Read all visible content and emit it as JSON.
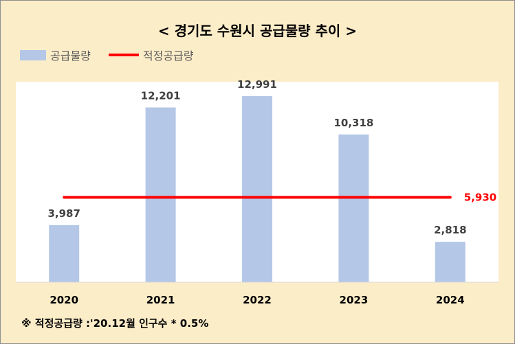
{
  "chart_data": {
    "type": "bar",
    "title": "< 경기도 수원시 공급물량 추이 >",
    "categories": [
      "2020",
      "2021",
      "2022",
      "2023",
      "2024"
    ],
    "series": [
      {
        "name": "공급물량",
        "type": "bar",
        "values": [
          3987,
          12201,
          12991,
          10318,
          2818
        ],
        "value_labels": [
          "3,987",
          "12,201",
          "12,991",
          "10,318",
          "2,818"
        ],
        "color": "#b4c7e7"
      },
      {
        "name": "적정공급량",
        "type": "line",
        "value": 5930,
        "value_label": "5,930",
        "color": "#ff0000"
      }
    ],
    "ylim": [
      0,
      14000
    ],
    "grid": false,
    "legend_position": "top-left",
    "footnote": "※ 적정공급량 :'20.12월 인구수 * 0.5%"
  },
  "colors": {
    "frame_background": "#fcedc9",
    "plot_background": "#ffffff",
    "bar": "#b4c7e7",
    "reference_line": "#ff0000",
    "label_text": "#404040"
  }
}
